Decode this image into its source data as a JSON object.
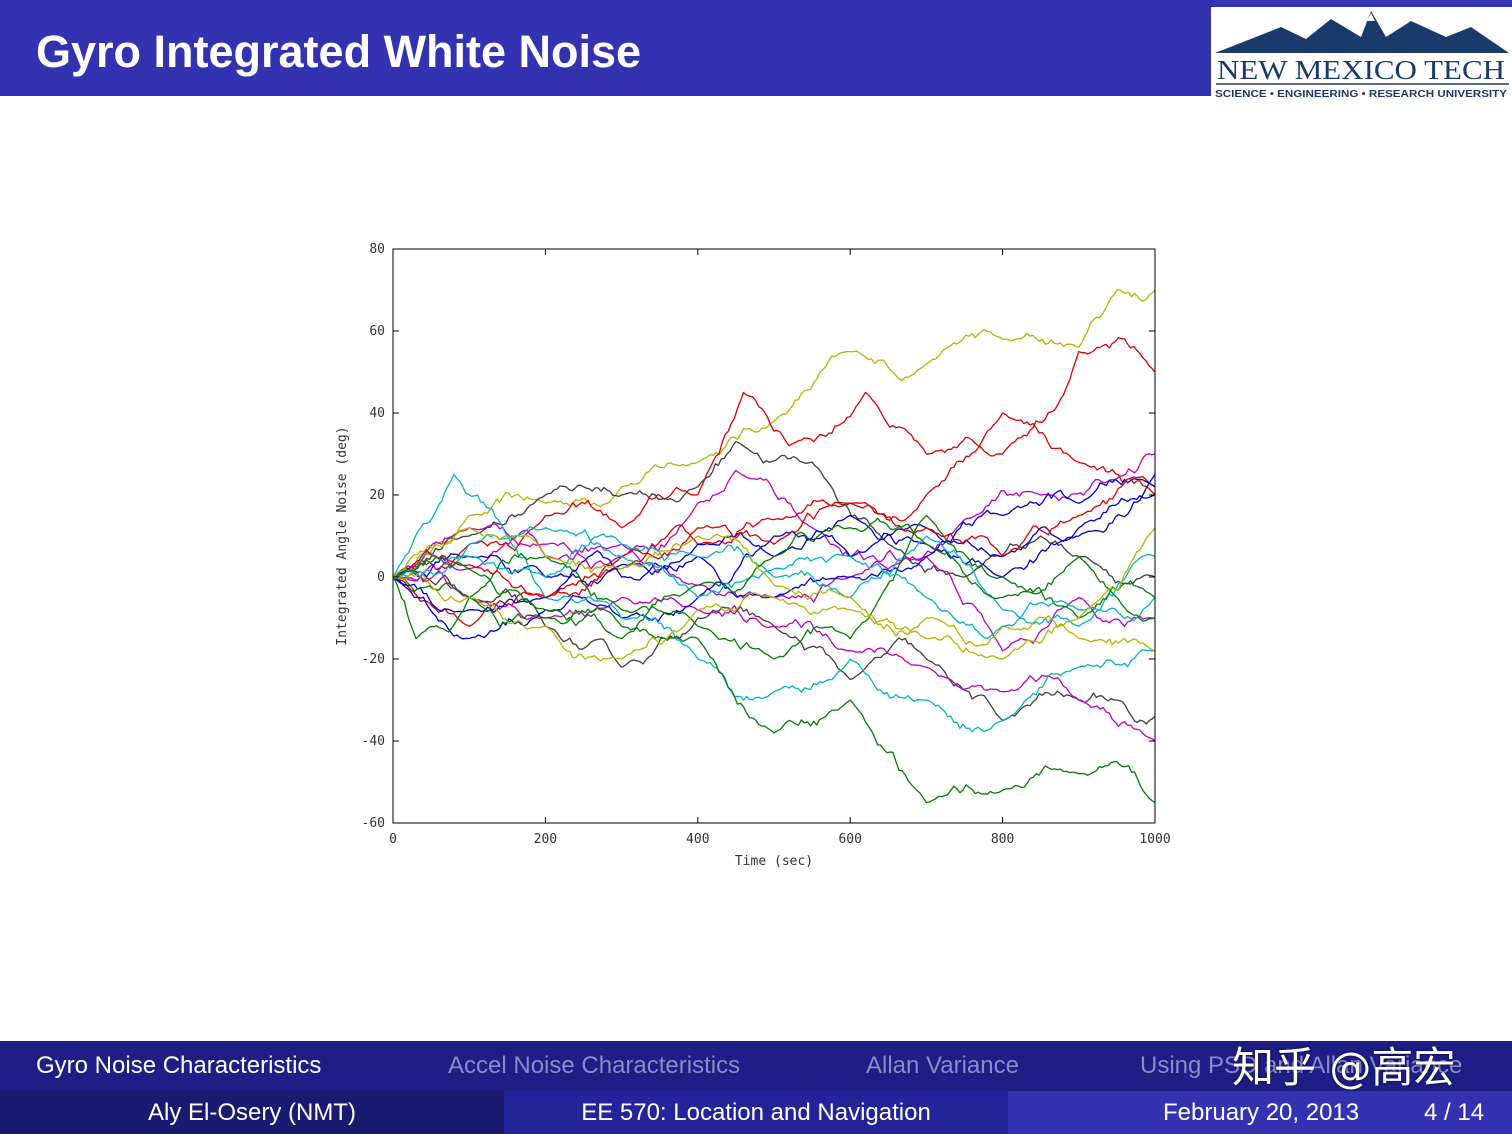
{
  "slide": {
    "title": "Gyro Integrated White Noise",
    "colors": {
      "title_bar": "#3333b2",
      "nav_bar": "#1e1e86",
      "text": "#ffffff",
      "nav_inactive": "#8a8ac8"
    }
  },
  "logo": {
    "name": "NEW MEXICO TECH",
    "tagline": "SCIENCE • ENGINEERING • RESEARCH UNIVERSITY",
    "icon": "mountain-logo-icon",
    "color": "#1a3a6b"
  },
  "chart_data": {
    "type": "line",
    "title": "",
    "xlabel": "Time (sec)",
    "ylabel": "Integrated Angle Noise (deg)",
    "xlim": [
      0,
      1000
    ],
    "ylim": [
      -60,
      80
    ],
    "xticks": [
      0,
      200,
      400,
      600,
      800,
      1000
    ],
    "yticks": [
      -60,
      -40,
      -20,
      0,
      20,
      40,
      60,
      80
    ],
    "grid": false,
    "legend": "none",
    "series": [
      {
        "color": "#b5b500",
        "x": [
          0,
          100,
          200,
          300,
          400,
          500,
          600,
          700,
          800,
          900,
          950,
          1000
        ],
        "y": [
          0,
          15,
          18,
          22,
          28,
          38,
          55,
          52,
          58,
          56,
          70,
          70
        ]
      },
      {
        "color": "#e00000",
        "x": [
          0,
          100,
          200,
          300,
          400,
          460,
          520,
          620,
          700,
          800,
          900,
          1000
        ],
        "y": [
          0,
          8,
          15,
          12,
          20,
          45,
          32,
          45,
          30,
          30,
          55,
          50
        ]
      },
      {
        "color": "#e00000",
        "x": [
          0,
          100,
          200,
          300,
          400,
          500,
          600,
          700,
          800,
          900,
          1000
        ],
        "y": [
          0,
          -12,
          -5,
          2,
          8,
          14,
          18,
          20,
          40,
          28,
          22
        ]
      },
      {
        "color": "#3f3f3f",
        "x": [
          0,
          100,
          200,
          250,
          300,
          400,
          450,
          550,
          650,
          750,
          850,
          900,
          1000
        ],
        "y": [
          0,
          10,
          20,
          22,
          20,
          22,
          33,
          28,
          8,
          0,
          10,
          5,
          0
        ]
      },
      {
        "color": "#3f3f3f",
        "x": [
          0,
          100,
          200,
          300,
          400,
          500,
          600,
          700,
          800,
          900,
          950,
          1000
        ],
        "y": [
          0,
          -5,
          -12,
          -22,
          -10,
          -12,
          -25,
          -20,
          -35,
          -30,
          -30,
          -34
        ]
      },
      {
        "color": "#c000c0",
        "x": [
          0,
          100,
          200,
          300,
          400,
          450,
          550,
          650,
          750,
          850,
          950,
          1000
        ],
        "y": [
          0,
          12,
          8,
          5,
          18,
          26,
          12,
          2,
          14,
          20,
          24,
          30
        ]
      },
      {
        "color": "#c000c0",
        "x": [
          0,
          100,
          200,
          300,
          400,
          500,
          600,
          700,
          800,
          900,
          1000
        ],
        "y": [
          0,
          -5,
          -10,
          -5,
          -8,
          -12,
          -18,
          -22,
          -28,
          -30,
          -40
        ]
      },
      {
        "color": "#c000c0",
        "x": [
          0,
          100,
          200,
          300,
          400,
          500,
          600,
          700,
          800,
          900,
          1000
        ],
        "y": [
          0,
          2,
          5,
          8,
          -2,
          -5,
          0,
          5,
          -18,
          -5,
          -10
        ]
      },
      {
        "color": "#0000d0",
        "x": [
          0,
          100,
          200,
          300,
          400,
          500,
          600,
          700,
          800,
          900,
          1000
        ],
        "y": [
          0,
          -15,
          -8,
          -10,
          -5,
          10,
          5,
          12,
          5,
          10,
          25
        ]
      },
      {
        "color": "#0000d0",
        "x": [
          0,
          100,
          200,
          300,
          400,
          500,
          600,
          700,
          800,
          900,
          1000
        ],
        "y": [
          0,
          5,
          0,
          3,
          8,
          5,
          15,
          8,
          0,
          12,
          20
        ]
      },
      {
        "color": "#0000d0",
        "x": [
          0,
          100,
          200,
          300,
          400,
          500,
          600,
          700,
          800,
          900,
          1000
        ],
        "y": [
          0,
          -8,
          -5,
          0,
          5,
          -5,
          0,
          5,
          15,
          18,
          22
        ]
      },
      {
        "color": "#00b5c5",
        "x": [
          0,
          80,
          150,
          200,
          300,
          400,
          500,
          600,
          700,
          800,
          900,
          1000
        ],
        "y": [
          0,
          25,
          10,
          -5,
          -10,
          -20,
          -28,
          -20,
          -30,
          -35,
          -22,
          -18
        ]
      },
      {
        "color": "#00b5c5",
        "x": [
          0,
          100,
          200,
          300,
          400,
          500,
          600,
          700,
          800,
          900,
          1000
        ],
        "y": [
          0,
          5,
          0,
          8,
          5,
          0,
          -5,
          10,
          -8,
          -12,
          5
        ]
      },
      {
        "color": "#007f00",
        "x": [
          0,
          30,
          100,
          200,
          300,
          400,
          500,
          600,
          700,
          800,
          900,
          950,
          1000
        ],
        "y": [
          0,
          -15,
          -5,
          -10,
          -12,
          -15,
          -38,
          -30,
          -55,
          -52,
          -48,
          -45,
          -55
        ]
      },
      {
        "color": "#007f00",
        "x": [
          0,
          100,
          200,
          300,
          400,
          500,
          600,
          700,
          800,
          900,
          1000
        ],
        "y": [
          0,
          -5,
          5,
          -8,
          -12,
          -20,
          -15,
          15,
          0,
          -10,
          -5
        ]
      },
      {
        "color": "#b5b500",
        "x": [
          0,
          100,
          200,
          300,
          400,
          500,
          600,
          700,
          800,
          900,
          1000
        ],
        "y": [
          0,
          -5,
          -12,
          -20,
          -8,
          -5,
          -8,
          -10,
          -12,
          -15,
          -18
        ]
      },
      {
        "color": "#e00000",
        "x": [
          0,
          100,
          200,
          300,
          400,
          500,
          600,
          700,
          800,
          900,
          1000
        ],
        "y": [
          0,
          3,
          -5,
          5,
          12,
          8,
          18,
          12,
          5,
          15,
          20
        ]
      },
      {
        "color": "#00b5c5",
        "x": [
          0,
          100,
          200,
          300,
          400,
          500,
          600,
          700,
          800,
          900,
          1000
        ],
        "y": [
          0,
          8,
          12,
          5,
          -5,
          2,
          5,
          -5,
          -12,
          -8,
          -5
        ]
      },
      {
        "color": "#007f00",
        "x": [
          0,
          100,
          200,
          300,
          400,
          500,
          600,
          700,
          800,
          900,
          1000
        ],
        "y": [
          0,
          2,
          -8,
          -15,
          -2,
          5,
          12,
          8,
          -5,
          5,
          -10
        ]
      },
      {
        "color": "#b5b500",
        "x": [
          0,
          100,
          200,
          300,
          400,
          500,
          600,
          700,
          800,
          900,
          1000
        ],
        "y": [
          0,
          12,
          5,
          2,
          10,
          -2,
          -5,
          -15,
          -20,
          -10,
          12
        ]
      }
    ]
  },
  "nav": {
    "items": [
      {
        "label": "Gyro Noise Characteristics",
        "active": true
      },
      {
        "label": "Accel Noise Characteristics",
        "active": false
      },
      {
        "label": "Allan Variance",
        "active": false
      },
      {
        "label": "Using PSD and Allan Variance",
        "active": false
      }
    ]
  },
  "footer": {
    "author": "Aly El-Osery  (NMT)",
    "course": "EE 570: Location and Navigation",
    "date": "February 20, 2013",
    "page": "4 / 14"
  },
  "watermark": "知乎 @高宏"
}
